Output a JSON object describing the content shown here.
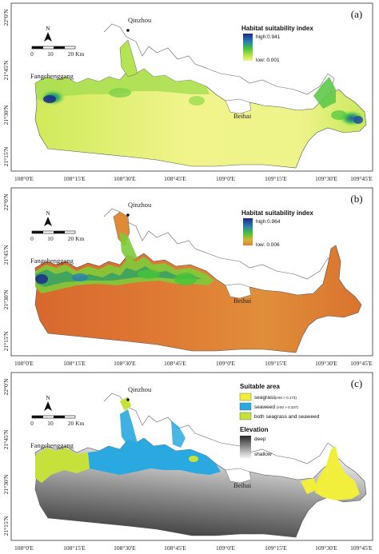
{
  "figure": {
    "x_ticks": [
      "108°0'E",
      "108°15'E",
      "108°30'E",
      "108°45'E",
      "109°0'E",
      "109°15'E",
      "109°30'E",
      "109°45'E"
    ],
    "y_ticks": [
      "22°0'N",
      "21°45'N",
      "21°30'N",
      "21°15'N"
    ],
    "scale_bar": {
      "labels": [
        "0",
        "10",
        "20 Km"
      ]
    },
    "north_label": "N",
    "place_names": {
      "qinzhou": "Qinzhou",
      "fangchenggang": "Fangchenggang",
      "beihai": "Beihai"
    }
  },
  "panels": [
    {
      "label": "(a)",
      "legend": {
        "title": "Habitat suitability index",
        "high": "high:0.941",
        "low": "low: 0.001",
        "colors": [
          "#1c2a8a",
          "#2a7fb0",
          "#48c43a",
          "#b8e24a",
          "#f2f58a"
        ]
      }
    },
    {
      "label": "(b)",
      "legend": {
        "title": "Habitat suitability index",
        "high": "high:0.964",
        "low": "low: 0.006",
        "colors": [
          "#1c2a8a",
          "#2a7fb0",
          "#48c43a",
          "#d8b434",
          "#e07a34"
        ]
      }
    },
    {
      "label": "(c)",
      "legend": {
        "suitable_title": "Suitable area",
        "items": [
          {
            "name": "seagrass",
            "note": "(HSI > 0.173)",
            "color": "#f2ee3c"
          },
          {
            "name": "seaweed",
            "note": "(HSI > 0.337)",
            "color": "#29a9df"
          },
          {
            "name": "both seagrass and seaweed",
            "note": "",
            "color": "#c6e23a"
          }
        ],
        "elevation_title": "Elevation",
        "deep": "deep",
        "shallow": "shallow"
      }
    }
  ]
}
